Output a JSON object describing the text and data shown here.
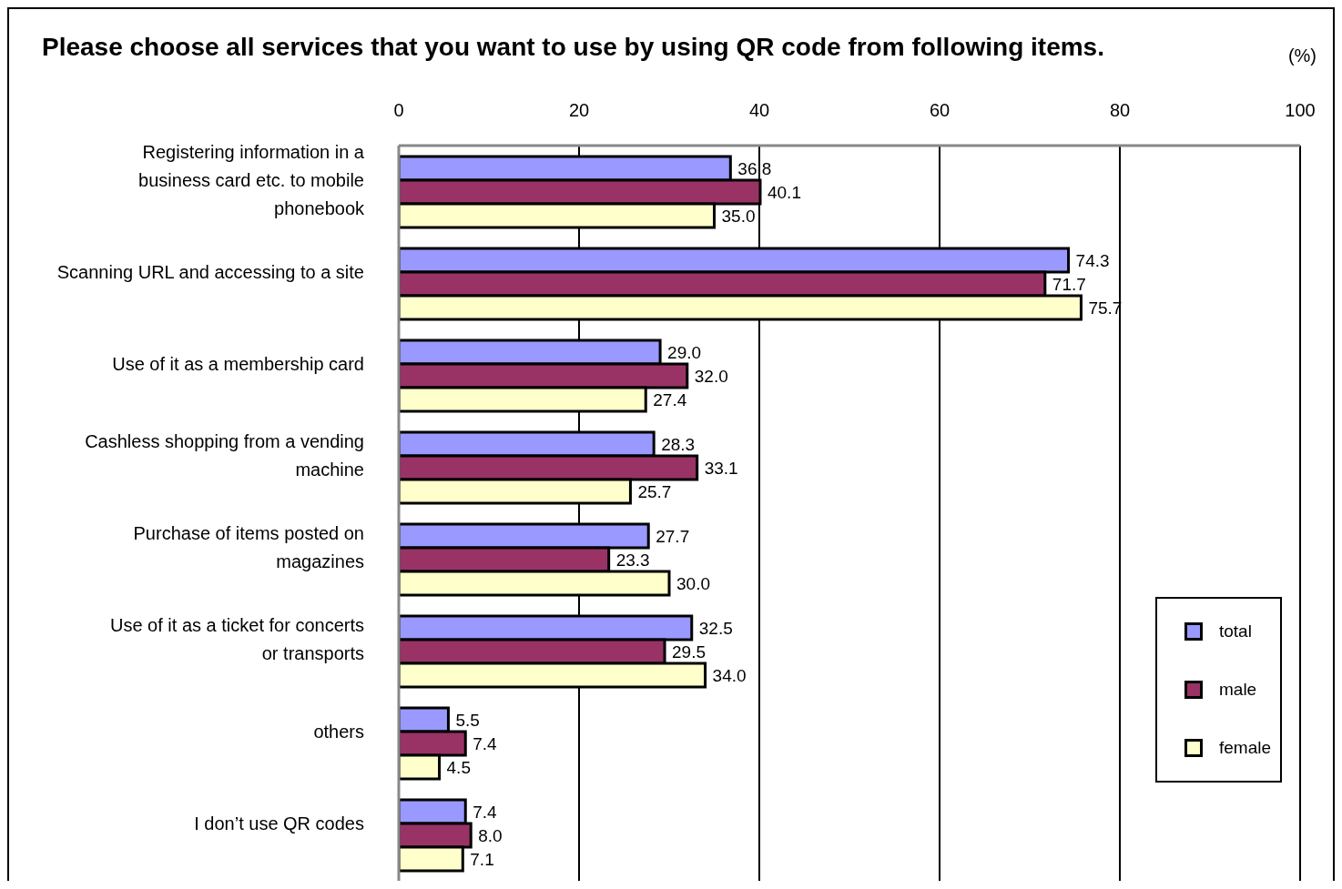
{
  "chart_data": {
    "type": "bar",
    "orientation": "horizontal",
    "title": "Please choose all services that you want to use by using QR code from following items.",
    "xlabel": "(%)",
    "categories": [
      "Registering information in a business card etc. to mobile phonebook",
      "Scanning URL and accessing to a site",
      "Use of it as a membership card",
      "Cashless shopping from a vending machine",
      "Purchase of items posted on magazines",
      "Use of it as a ticket for concerts or transports",
      "others",
      "I don’t use QR codes"
    ],
    "series": [
      {
        "name": "total",
        "color": "#9999ff",
        "values": [
          36.8,
          74.3,
          29.0,
          28.3,
          27.7,
          32.5,
          5.5,
          7.4
        ],
        "value_labels": [
          "36.8",
          "74.3",
          "29.0",
          "28.3",
          "27.7",
          "32.5",
          "5.5",
          "7.4"
        ]
      },
      {
        "name": "male",
        "color": "#993366",
        "values": [
          40.1,
          71.7,
          32.0,
          33.1,
          23.3,
          29.5,
          7.4,
          8.0
        ],
        "value_labels": [
          "40.1",
          "71.7",
          "32.0",
          "33.1",
          "23.3",
          "29.5",
          "7.4",
          "8.0"
        ]
      },
      {
        "name": "female",
        "color": "#ffffcc",
        "values": [
          35.0,
          75.7,
          27.4,
          25.7,
          30.0,
          34.0,
          4.5,
          7.1
        ],
        "value_labels": [
          "35.0",
          "75.7",
          "27.4",
          "25.7",
          "30.0",
          "34.0",
          "4.5",
          "7.1"
        ]
      }
    ],
    "xlim": [
      0,
      100
    ],
    "xticks": [
      0,
      20,
      40,
      60,
      80,
      100
    ],
    "grid": "x",
    "legend": "bottom right"
  }
}
